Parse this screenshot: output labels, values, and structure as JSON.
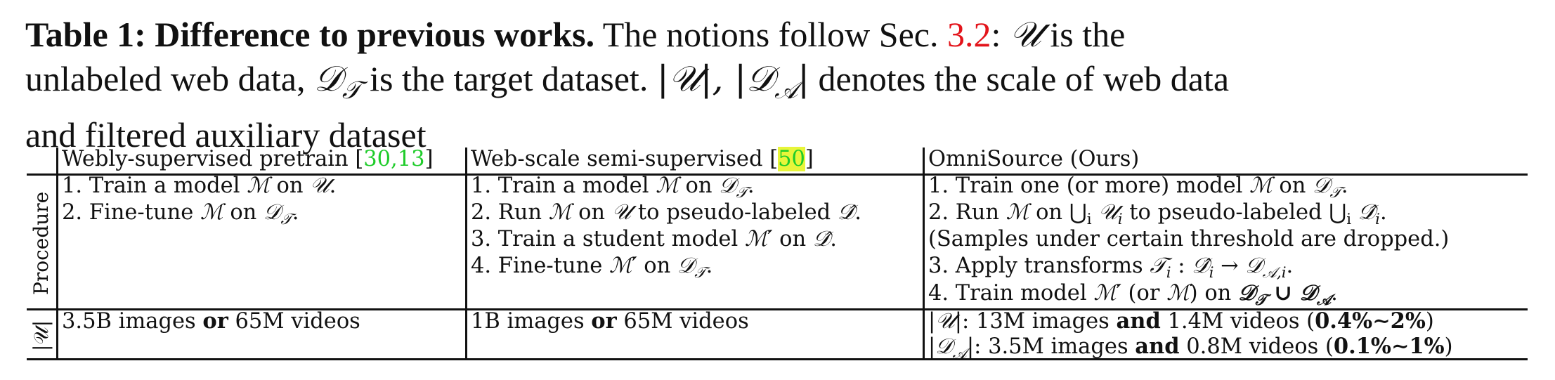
{
  "caption": {
    "label": "Table 1: Difference to previous works.",
    "s1": " The notions follow Sec. ",
    "ref": "3.2",
    "s2": ": ",
    "s3": " is the",
    "line2a": "unlabeled web data, ",
    "line2b": " is the target dataset. ",
    "line2c": " denotes the scale of web data",
    "line3": "and filtered auxiliary dataset"
  },
  "table": {
    "headers": {
      "col1": "Webly-supervised pretrain [",
      "col1_refs": "30,13",
      "col1_end": "]",
      "col2": "Web-scale semi-supervised [",
      "col2_ref": "50",
      "col2_end": "]",
      "col3": "OmniSource (Ours)"
    },
    "row_labels": {
      "procedure": "Procedure",
      "scale": "|𝒰|"
    },
    "col1_steps": [
      "1. Train a model ",
      "2. Fine-tune "
    ],
    "col2_steps": [
      "1. Train a model ",
      "2. Run ",
      "3. Train a student model ",
      "4. Fine-tune "
    ],
    "col3_steps": [
      "1. Train one (or more) model ",
      "2. Run ",
      "(Samples under certain threshold are dropped.)",
      "3. Apply transforms ",
      "4. Train model "
    ],
    "scale": {
      "col1_a": "3.5B images ",
      "col1_or": "or",
      "col1_b": " 65M videos",
      "col2_a": "1B images ",
      "col2_or": "or",
      "col2_b": " 65M videos",
      "col3_l1_a": ": 13M images ",
      "col3_and": "and",
      "col3_l1_b": " 1.4M videos (",
      "col3_l1_pct": "0.4%∼2%",
      "col3_close": ")",
      "col3_l2_a": ": 3.5M images ",
      "col3_l2_b": " 0.8M videos (",
      "col3_l2_pct": "0.1%∼1%"
    }
  }
}
